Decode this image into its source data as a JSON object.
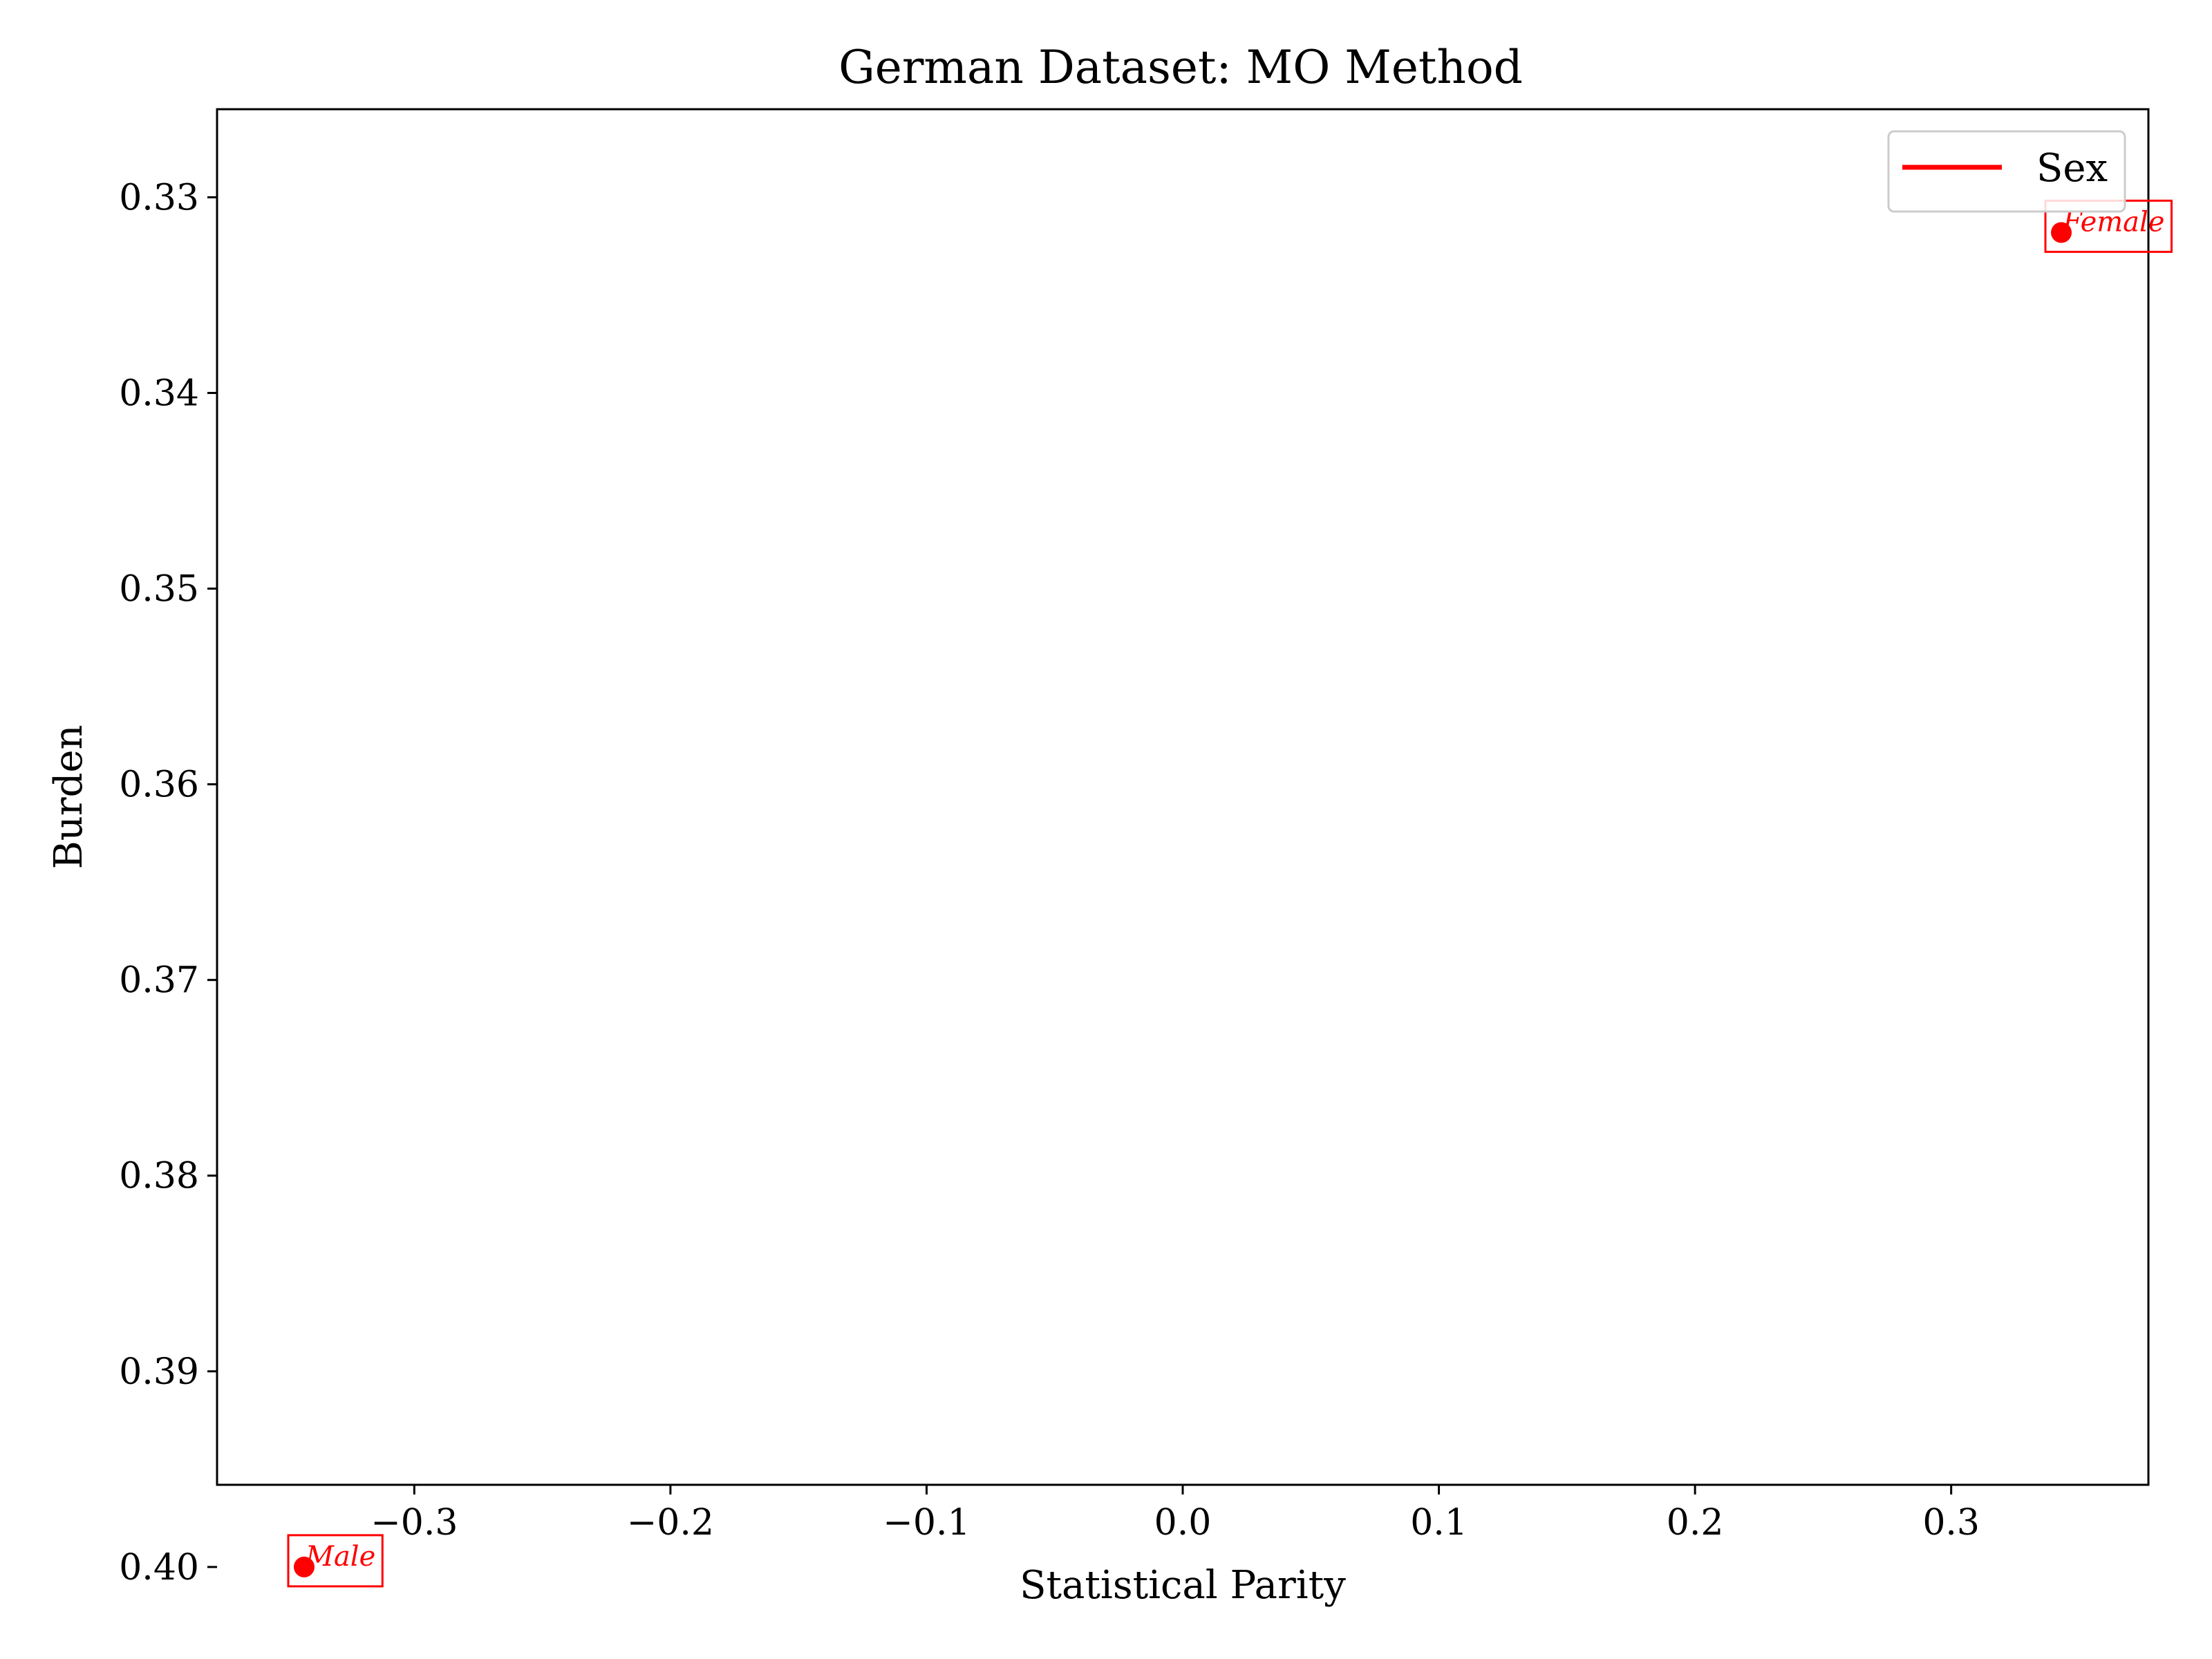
{
  "chart_data": {
    "type": "scatter",
    "title": "German Dataset: MO Method",
    "xlabel": "Statistical Parity",
    "ylabel": "Burden",
    "xlim": [
      -0.377,
      0.377
    ],
    "ylim": [
      0.3958,
      0.3255
    ],
    "y_inverted": true,
    "xticks": [
      -0.3,
      -0.2,
      -0.1,
      0.0,
      0.1,
      0.2,
      0.3
    ],
    "xtick_labels": [
      "−0.3",
      "−0.2",
      "−0.1",
      "0.0",
      "0.1",
      "0.2",
      "0.3"
    ],
    "yticks": [
      0.33,
      0.34,
      0.35,
      0.36,
      0.37,
      0.38,
      0.39,
      0.4
    ],
    "ytick_labels": [
      "0.33",
      "0.34",
      "0.35",
      "0.36",
      "0.37",
      "0.38",
      "0.39",
      "0.40"
    ],
    "grid": false,
    "legend": {
      "placement": "top-right",
      "entries": [
        {
          "label": "Sex",
          "color": "#ff0000",
          "marker": "line"
        }
      ]
    },
    "series": [
      {
        "name": "Sex",
        "color": "#ff0000",
        "points": [
          {
            "x": -0.343,
            "y": 0.4,
            "label": "Male"
          },
          {
            "x": 0.343,
            "y": 0.3318,
            "label": "Female"
          }
        ]
      }
    ]
  }
}
